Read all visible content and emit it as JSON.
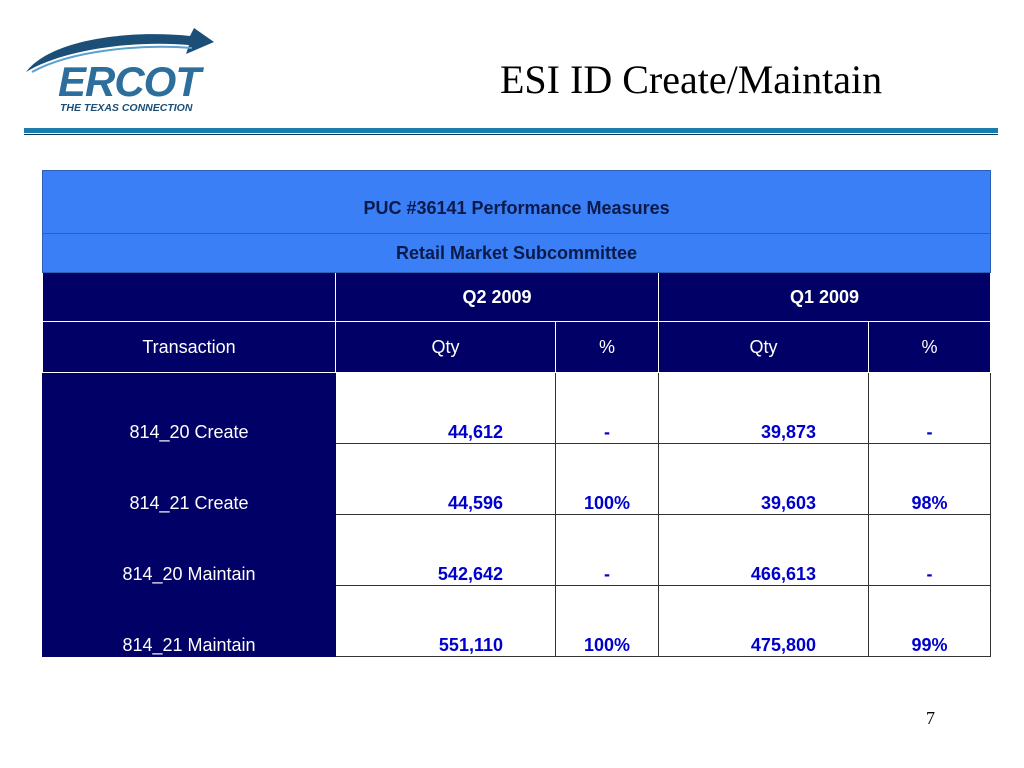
{
  "logo": {
    "name": "ERCOT",
    "tagline": "THE TEXAS CONNECTION",
    "brand_color": "#2c6e9c"
  },
  "title": "ESI ID Create/Maintain",
  "table": {
    "heading": "PUC #36141 Performance Measures",
    "subheading": "Retail Market Subcommittee",
    "quarters": [
      "Q2 2009",
      "Q1 2009"
    ],
    "columns": {
      "transaction": "Transaction",
      "qty": "Qty",
      "pct": "%"
    },
    "rows": [
      {
        "transaction": "814_20 Create",
        "q2_qty": "44,612",
        "q2_pct": "-",
        "q1_qty": "39,873",
        "q1_pct": "-"
      },
      {
        "transaction": "814_21 Create",
        "q2_qty": "44,596",
        "q2_pct": "100%",
        "q1_qty": "39,603",
        "q1_pct": "98%"
      },
      {
        "transaction": "814_20 Maintain",
        "q2_qty": "542,642",
        "q2_pct": "-",
        "q1_qty": "466,613",
        "q1_pct": "-"
      },
      {
        "transaction": "814_21 Maintain",
        "q2_qty": "551,110",
        "q2_pct": "100%",
        "q1_qty": "475,800",
        "q1_pct": "99%"
      }
    ]
  },
  "page_number": "7"
}
